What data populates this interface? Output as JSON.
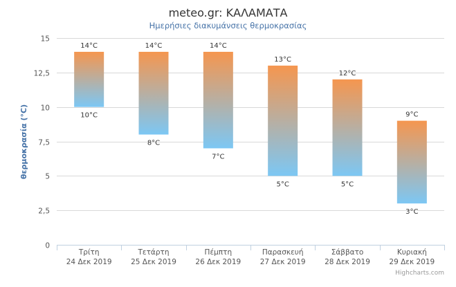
{
  "chart_data": {
    "type": "columnrange",
    "title": "meteo.gr: ΚΑΛΑΜΑΤΑ",
    "subtitle": "Ημερήσιες διακυμάνσεις θερμοκρασίας",
    "ylabel": "θερμοκρασία (°C)",
    "ylim": [
      0,
      15
    ],
    "yticks": [
      "0",
      "2,5",
      "5",
      "7,5",
      "10",
      "12,5",
      "15"
    ],
    "ytick_values": [
      0,
      2.5,
      5,
      7.5,
      10,
      12.5,
      15
    ],
    "categories": [
      [
        "Τρίτη",
        "24 Δεκ 2019"
      ],
      [
        "Τετάρτη",
        "25 Δεκ 2019"
      ],
      [
        "Πέμπτη",
        "26 Δεκ 2019"
      ],
      [
        "Παρασκευή",
        "27 Δεκ 2019"
      ],
      [
        "Σάββατο",
        "28 Δεκ 2019"
      ],
      [
        "Κυριακή",
        "29 Δεκ 2019"
      ]
    ],
    "low": [
      10,
      8,
      7,
      5,
      5,
      3
    ],
    "high": [
      14,
      14,
      14,
      13,
      12,
      9
    ],
    "low_labels": [
      "10°C",
      "8°C",
      "7°C",
      "5°C",
      "5°C",
      "3°C"
    ],
    "high_labels": [
      "14°C",
      "14°C",
      "14°C",
      "13°C",
      "12°C",
      "9°C"
    ],
    "grid": true,
    "colors": {
      "top": "#f5964f",
      "bottom": "#7cc7f4",
      "grid": "#d8d8d8",
      "axis": "#c0d0e0"
    }
  },
  "credits": "Highcharts.com"
}
